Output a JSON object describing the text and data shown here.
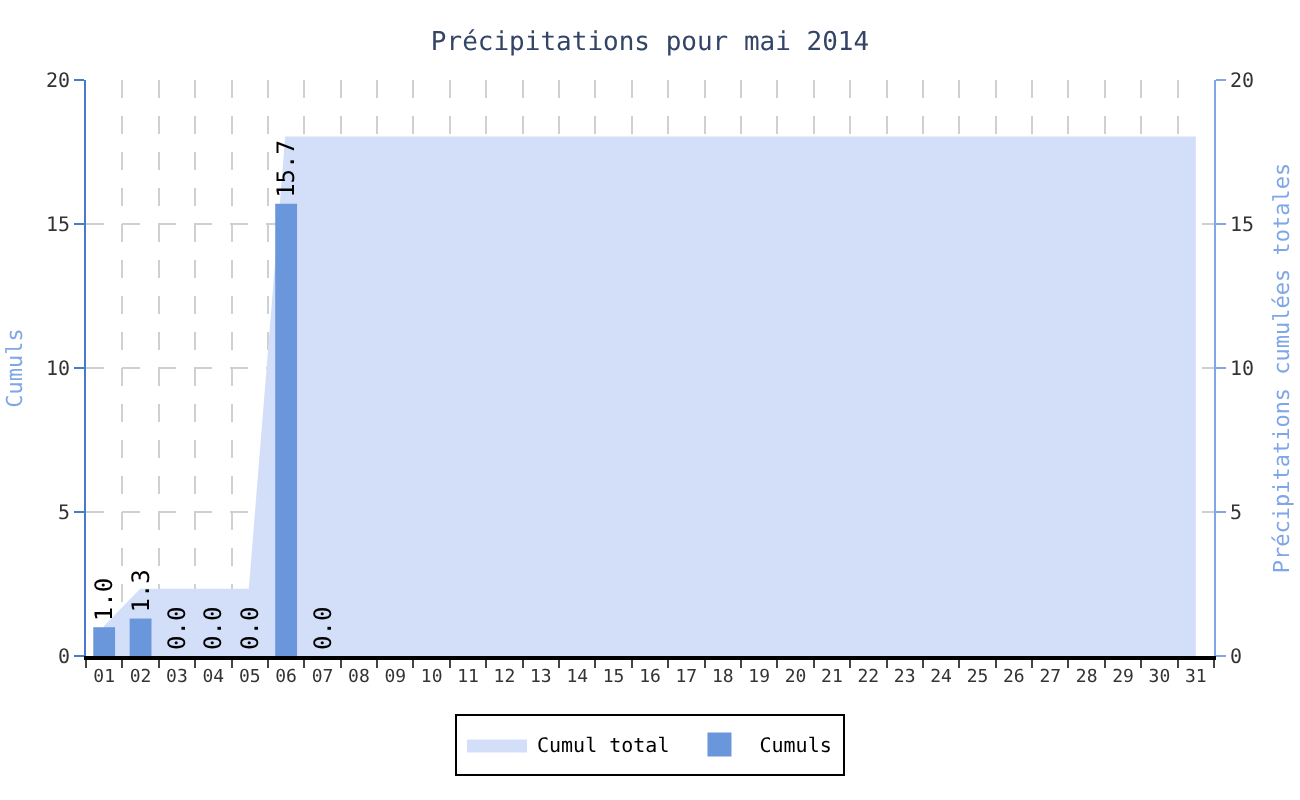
{
  "chart_data": {
    "type": "bar",
    "title": "Précipitations pour mai 2014",
    "ylabel": "Cumuls",
    "y2label": "Précipitations cumulées totales",
    "categories": [
      "01",
      "02",
      "03",
      "04",
      "05",
      "06",
      "07",
      "08",
      "09",
      "10",
      "11",
      "12",
      "13",
      "14",
      "15",
      "16",
      "17",
      "18",
      "19",
      "20",
      "21",
      "22",
      "23",
      "24",
      "25",
      "26",
      "27",
      "28",
      "29",
      "30",
      "31"
    ],
    "series": [
      {
        "name": "Cumul total",
        "type": "area",
        "axis": "y2",
        "color": "#d3dff8",
        "values": [
          1.0,
          2.3,
          2.3,
          2.3,
          2.3,
          18.0,
          18.0,
          18.0,
          18.0,
          18.0,
          18.0,
          18.0,
          18.0,
          18.0,
          18.0,
          18.0,
          18.0,
          18.0,
          18.0,
          18.0,
          18.0,
          18.0,
          18.0,
          18.0,
          18.0,
          18.0,
          18.0,
          18.0,
          18.0,
          18.0,
          18.0
        ]
      },
      {
        "name": "Cumuls",
        "color": "#6a96dc",
        "values": [
          1.0,
          1.3,
          0.0,
          0.0,
          0.0,
          15.7,
          0.0,
          null,
          null,
          null,
          null,
          null,
          null,
          null,
          null,
          null,
          null,
          null,
          null,
          null,
          null,
          null,
          null,
          null,
          null,
          null,
          null,
          null,
          null,
          null,
          null
        ],
        "value_labels": [
          "1.0",
          "1.3",
          "0.0",
          "0.0",
          "0.0",
          "15.7",
          "0.0",
          null,
          null,
          null,
          null,
          null,
          null,
          null,
          null,
          null,
          null,
          null,
          null,
          null,
          null,
          null,
          null,
          null,
          null,
          null,
          null,
          null,
          null,
          null,
          null
        ]
      }
    ],
    "ylim": [
      0,
      20
    ],
    "yticks": [
      0,
      5,
      10,
      15,
      20
    ],
    "y2lim": [
      0,
      20
    ],
    "y2ticks": [
      0,
      5,
      10,
      15,
      20
    ],
    "grid": true,
    "legend": "bottom"
  }
}
